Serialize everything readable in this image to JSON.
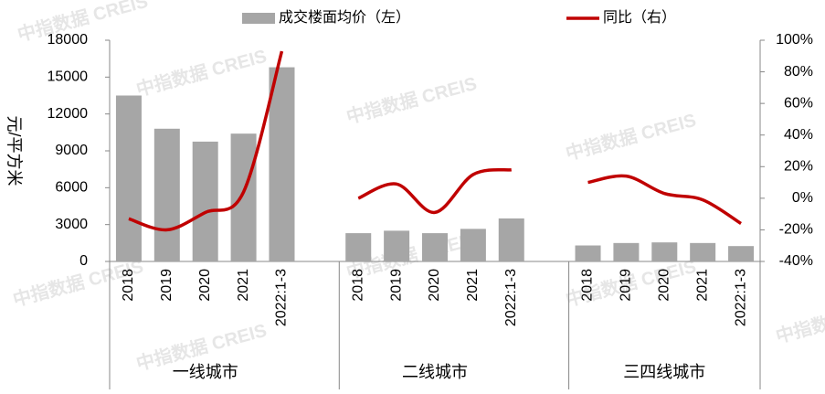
{
  "chart_data": {
    "type": "bar_line",
    "legend": {
      "bar": "成交楼面均价（左）",
      "line": "同比（右）"
    },
    "ylabel": "元/平方米",
    "watermark": "中指数据 CREIS",
    "categories": [
      "2018",
      "2019",
      "2020",
      "2021",
      "2022:1-3",
      null,
      "2018",
      "2019",
      "2020",
      "2021",
      "2022:1-3",
      null,
      "2018",
      "2019",
      "2020",
      "2021",
      "2022:1-3"
    ],
    "groups": [
      {
        "label": "一线城市",
        "start": 0,
        "end": 4
      },
      {
        "label": "二线城市",
        "start": 6,
        "end": 10
      },
      {
        "label": "三四线城市",
        "start": 12,
        "end": 16
      }
    ],
    "series": [
      {
        "name": "成交楼面均价（左）",
        "color": "#a6a6a6",
        "values": [
          13500,
          10800,
          9750,
          10400,
          15800,
          null,
          2300,
          2500,
          2300,
          2650,
          3500,
          null,
          1300,
          1500,
          1550,
          1500,
          1250
        ]
      },
      {
        "name": "同比（右）",
        "color": "#c00000",
        "axis": "y2",
        "values": [
          -13,
          -20,
          -9,
          4,
          93,
          null,
          0,
          9,
          -9,
          15,
          18,
          null,
          10,
          14,
          3,
          -1,
          -16
        ]
      }
    ],
    "ylim": [
      0,
      18000
    ],
    "yticks": [
      0,
      3000,
      6000,
      9000,
      12000,
      15000,
      18000
    ],
    "y2lim": [
      -40,
      100
    ],
    "y2ticks": [
      {
        "value": -40,
        "label": "-40%"
      },
      {
        "value": -20,
        "label": "-20%"
      },
      {
        "value": 0,
        "label": "0%"
      },
      {
        "value": 20,
        "label": "20%"
      },
      {
        "value": 40,
        "label": "40%"
      },
      {
        "value": 60,
        "label": "60%"
      },
      {
        "value": 80,
        "label": "80%"
      },
      {
        "value": 100,
        "label": "100%"
      }
    ]
  }
}
